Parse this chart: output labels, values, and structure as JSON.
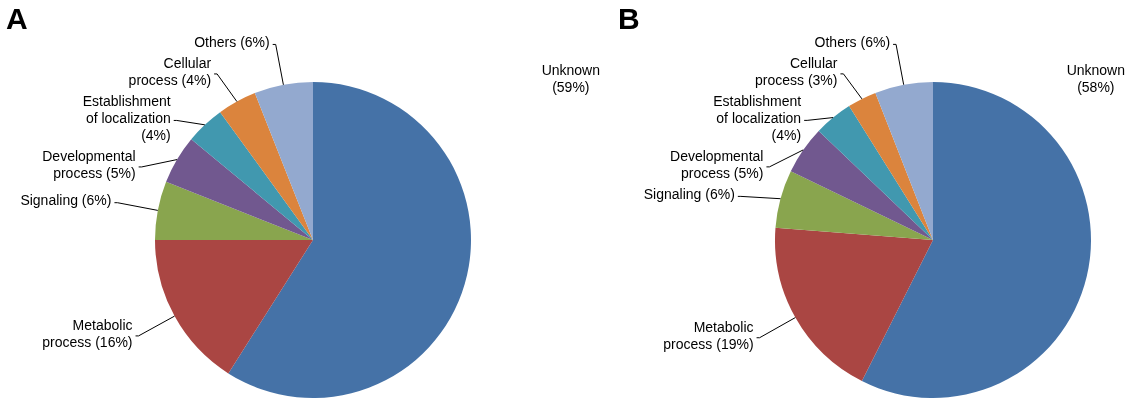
{
  "chart_data": [
    {
      "type": "pie",
      "title": "A",
      "categories": [
        "Unknown",
        "Metabolic process",
        "Signaling",
        "Developmental process",
        "Establishment of localization",
        "Cellular process",
        "Others"
      ],
      "values": [
        59,
        16,
        6,
        5,
        4,
        4,
        6
      ],
      "value_labels": [
        "(59%)",
        "(16%)",
        "(6%)",
        "(5%)",
        "(4%)",
        "(4%)",
        "(6%)"
      ],
      "colors": [
        "#4572a7",
        "#aa4643",
        "#89a54e",
        "#71588f",
        "#4198af",
        "#db843d",
        "#93a9cf"
      ],
      "legend": false
    },
    {
      "type": "pie",
      "title": "B",
      "categories": [
        "Unknown",
        "Metabolic process",
        "Signaling",
        "Developmental process",
        "Establishment of localization",
        "Cellular process",
        "Others"
      ],
      "values": [
        58,
        19,
        6,
        5,
        4,
        3,
        6
      ],
      "value_labels": [
        "(58%)",
        "(19%)",
        "(6%)",
        "(5%)",
        "(4%)",
        "(3%)",
        "(6%)"
      ],
      "colors": [
        "#4572a7",
        "#aa4643",
        "#89a54e",
        "#71588f",
        "#4198af",
        "#db843d",
        "#93a9cf"
      ],
      "legend": false
    }
  ]
}
